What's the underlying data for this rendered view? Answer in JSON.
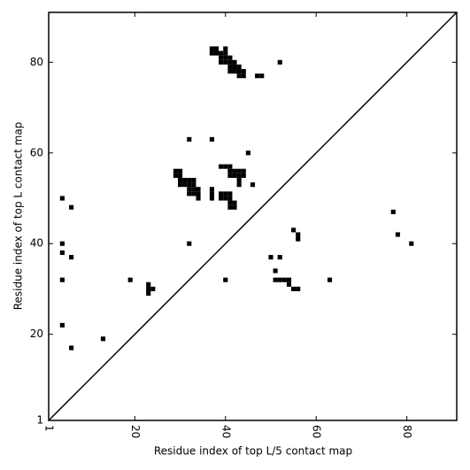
{
  "chart_data": {
    "type": "scatter",
    "marker": "square",
    "xlabel": "Residue index of top L/5 contact map",
    "ylabel": "Residue index of top L contact map",
    "xlim": [
      1,
      91
    ],
    "ylim": [
      1,
      91
    ],
    "xticks": [
      1,
      20,
      40,
      60,
      80
    ],
    "yticks": [
      1,
      20,
      40,
      60,
      80
    ],
    "diagonal": true,
    "diagonal_color": "#000000",
    "series": [
      {
        "color": "#000000",
        "x": [
          4,
          6,
          4,
          4,
          6,
          4,
          4,
          6,
          13,
          19,
          23,
          23,
          23,
          24,
          32,
          37,
          45,
          32,
          40,
          46,
          52,
          37,
          38,
          40,
          37,
          38,
          39,
          40,
          39,
          40,
          41,
          39,
          40,
          41,
          42,
          41,
          42,
          43,
          41,
          42,
          43,
          44,
          43,
          44,
          47,
          48,
          29,
          30,
          29,
          30,
          30,
          31,
          32,
          33,
          30,
          31,
          32,
          33,
          32,
          33,
          34,
          32,
          33,
          34,
          34,
          37,
          37,
          37,
          39,
          40,
          41,
          41,
          42,
          43,
          44,
          41,
          42,
          43,
          44,
          43,
          43,
          39,
          40,
          41,
          39,
          40,
          41,
          41,
          42,
          41,
          42,
          55,
          56,
          56,
          50,
          52,
          51,
          51,
          52,
          53,
          54,
          54,
          55,
          56,
          63,
          77,
          78,
          81
        ],
        "y": [
          50,
          48,
          40,
          38,
          37,
          32,
          22,
          17,
          19,
          32,
          31,
          30,
          29,
          30,
          63,
          63,
          60,
          40,
          32,
          53,
          80,
          83,
          83,
          83,
          82,
          82,
          82,
          82,
          81,
          81,
          81,
          80,
          80,
          80,
          80,
          79,
          79,
          79,
          78,
          78,
          78,
          78,
          77,
          77,
          77,
          77,
          56,
          56,
          55,
          55,
          54,
          54,
          54,
          54,
          53,
          53,
          53,
          53,
          52,
          52,
          52,
          51,
          51,
          51,
          50,
          52,
          51,
          50,
          57,
          57,
          57,
          56,
          56,
          56,
          56,
          55,
          55,
          55,
          55,
          54,
          53,
          51,
          51,
          51,
          50,
          50,
          50,
          49,
          49,
          48,
          48,
          43,
          42,
          41,
          37,
          37,
          34,
          32,
          32,
          32,
          32,
          31,
          30,
          30,
          32,
          47,
          42,
          40
        ]
      }
    ]
  }
}
